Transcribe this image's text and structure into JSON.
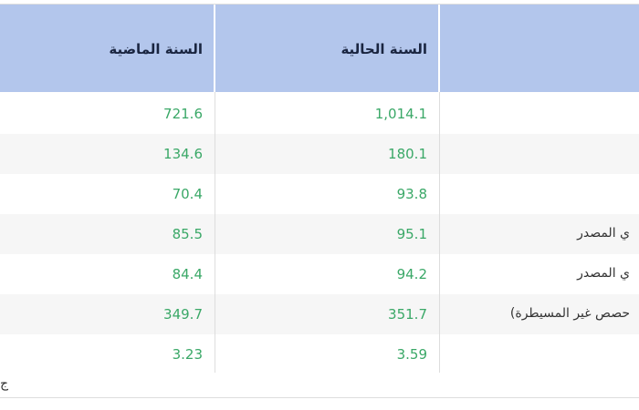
{
  "table": {
    "headers": {
      "current_year": "السنة الحالية",
      "last_year": "السنة الماضية"
    },
    "rows": [
      {
        "label": "",
        "current": "1,014.1",
        "last": "721.6"
      },
      {
        "label": "",
        "current": "180.1",
        "last": "134.6"
      },
      {
        "label": "",
        "current": "93.8",
        "last": "70.4"
      },
      {
        "label": "ي المصدر",
        "current": "95.1",
        "last": "85.5"
      },
      {
        "label": "ي المصدر",
        "current": "94.2",
        "last": "84.4"
      },
      {
        "label": "حصص غير المسيطرة)",
        "current": "351.7",
        "last": "349.7"
      },
      {
        "label": "",
        "current": "3.59",
        "last": "3.23"
      }
    ]
  },
  "footer": {
    "text": "ج"
  },
  "colors": {
    "header_bg": "#b3c6ec",
    "value_text": "#3aa867"
  }
}
